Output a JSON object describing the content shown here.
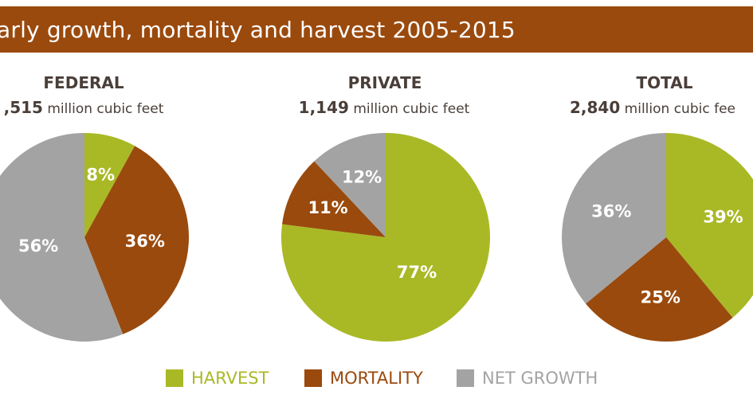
{
  "header": {
    "title": "arly growth, mortality and harvest 2005-2015"
  },
  "colors": {
    "banner": "#9a4a0d",
    "harvest": "#a9b926",
    "mortality": "#9a4a0d",
    "net_growth": "#a3a3a3"
  },
  "legend": {
    "harvest": "HARVEST",
    "mortality": "MORTALITY",
    "net_growth": "NET GROWTH"
  },
  "chart_data": [
    {
      "type": "pie",
      "title": "FEDERAL",
      "total_value": ",515",
      "total_unit": "million cubic feet",
      "categories": [
        "HARVEST",
        "MORTALITY",
        "NET GROWTH"
      ],
      "values": [
        8,
        36,
        56
      ],
      "value_labels": [
        "8%",
        "36%",
        "56%"
      ]
    },
    {
      "type": "pie",
      "title": "PRIVATE",
      "total_value": "1,149",
      "total_unit": "million cubic feet",
      "categories": [
        "HARVEST",
        "MORTALITY",
        "NET GROWTH"
      ],
      "values": [
        77,
        11,
        12
      ],
      "value_labels": [
        "77%",
        "11%",
        "12%"
      ]
    },
    {
      "type": "pie",
      "title": "TOTAL",
      "total_value": "2,840",
      "total_unit": "million cubic fee",
      "categories": [
        "HARVEST",
        "MORTALITY",
        "NET GROWTH"
      ],
      "values": [
        39,
        25,
        36
      ],
      "value_labels": [
        "39%",
        "25%",
        "36%"
      ]
    }
  ]
}
